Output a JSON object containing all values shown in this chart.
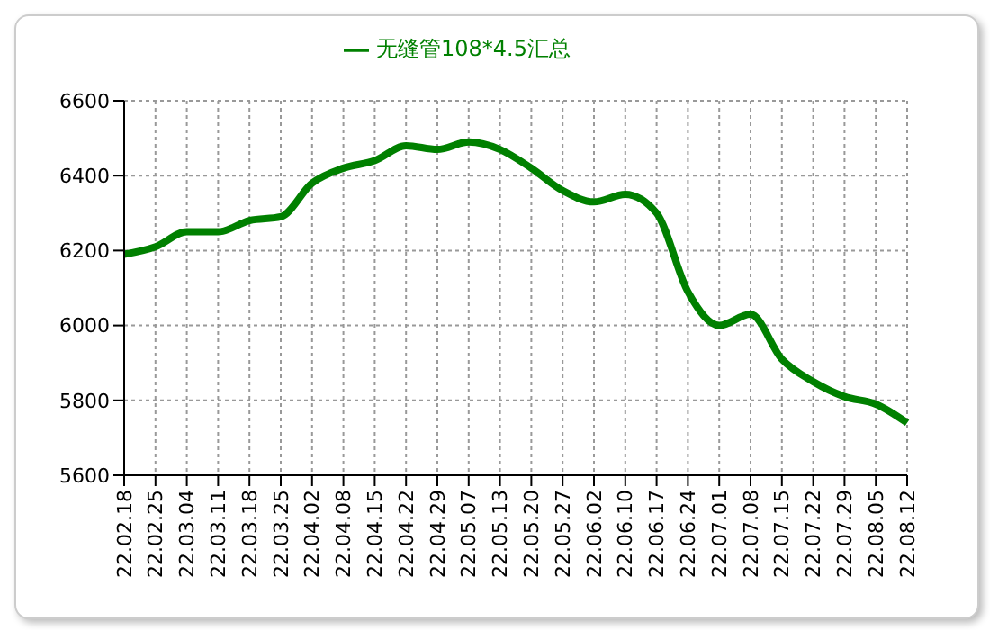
{
  "chart_data": {
    "type": "line",
    "categories": [
      "22.02.18",
      "22.02.25",
      "22.03.04",
      "22.03.11",
      "22.03.18",
      "22.03.25",
      "22.04.02",
      "22.04.08",
      "22.04.15",
      "22.04.22",
      "22.04.29",
      "22.05.07",
      "22.05.13",
      "22.05.20",
      "22.05.27",
      "22.06.02",
      "22.06.10",
      "22.06.17",
      "22.06.24",
      "22.07.01",
      "22.07.08",
      "22.07.15",
      "22.07.22",
      "22.07.29",
      "22.08.05",
      "22.08.12"
    ],
    "series": [
      {
        "name": "无缝管108*4.5汇总",
        "color": "#008000",
        "values": [
          6190,
          6210,
          6250,
          6250,
          6280,
          6290,
          6380,
          6420,
          6440,
          6480,
          6470,
          6490,
          6470,
          6420,
          6360,
          6330,
          6350,
          6300,
          6090,
          6000,
          6030,
          5910,
          5850,
          5810,
          5790,
          5740
        ]
      }
    ],
    "ylim": [
      5600,
      6600
    ],
    "yticks": [
      5600,
      5800,
      6000,
      6200,
      6400,
      6600
    ],
    "grid": true,
    "legend": "top",
    "marker": "none",
    "line_style": "solid"
  }
}
